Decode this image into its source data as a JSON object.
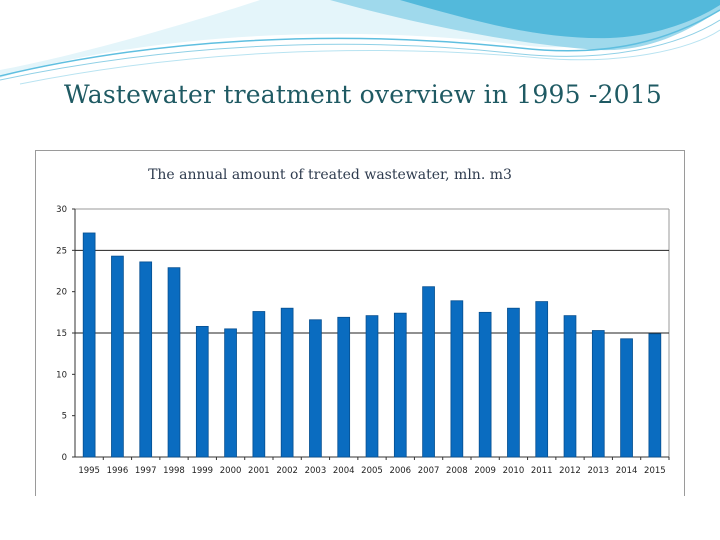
{
  "slide": {
    "title": "Wastewater treatment overview in 1995 -2015"
  },
  "colors": {
    "bar": "#0a6cc0",
    "bar_edge": "#064f90",
    "deco_light": "#d8f0f7",
    "deco_mid": "#8fd0e6",
    "deco_dark": "#3aa9cf",
    "title": "#1f5a63"
  },
  "chart_data": {
    "type": "bar",
    "title": "The annual amount of treated wastewater, mln. m3",
    "categories": [
      "1995",
      "1996",
      "1997",
      "1998",
      "1999",
      "2000",
      "2001",
      "2002",
      "2003",
      "2004",
      "2005",
      "2006",
      "2007",
      "2008",
      "2009",
      "2010",
      "2011",
      "2012",
      "2013",
      "2014",
      "2015"
    ],
    "values": [
      27.1,
      24.3,
      23.6,
      22.9,
      15.8,
      15.5,
      17.6,
      18.0,
      16.6,
      16.9,
      17.1,
      17.4,
      20.6,
      18.9,
      17.5,
      18.0,
      18.8,
      17.1,
      15.3,
      14.3,
      14.9
    ],
    "xlabel": "",
    "ylabel": "",
    "ylim": [
      0,
      30
    ],
    "yticks": [
      "0",
      "5",
      "10",
      "15",
      "20",
      "25",
      "30"
    ],
    "gridlines": [
      15,
      25
    ]
  }
}
